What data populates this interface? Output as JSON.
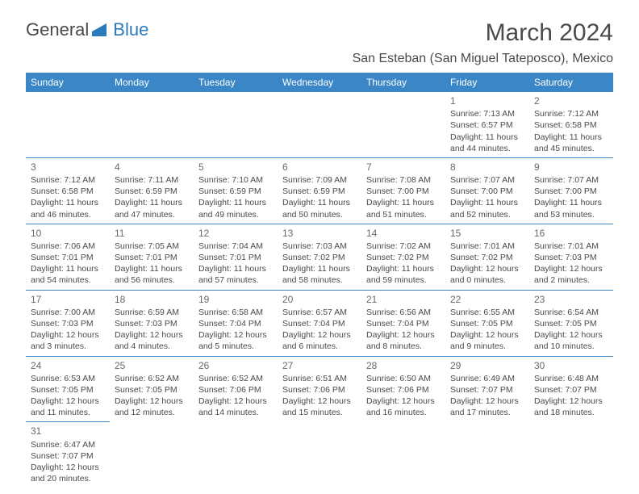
{
  "logo": {
    "text1": "General",
    "text2": "Blue"
  },
  "title": "March 2024",
  "location": "San Esteban (San Miguel Tateposco), Mexico",
  "colors": {
    "header_bg": "#3b86c6",
    "header_fg": "#ffffff",
    "border": "#3b86c6",
    "text": "#4a4a4a",
    "logo_blue": "#2b7bbd"
  },
  "weekdays": [
    "Sunday",
    "Monday",
    "Tuesday",
    "Wednesday",
    "Thursday",
    "Friday",
    "Saturday"
  ],
  "weeks": [
    [
      null,
      null,
      null,
      null,
      null,
      {
        "n": "1",
        "sr": "7:13 AM",
        "ss": "6:57 PM",
        "dl": "11 hours and 44 minutes."
      },
      {
        "n": "2",
        "sr": "7:12 AM",
        "ss": "6:58 PM",
        "dl": "11 hours and 45 minutes."
      }
    ],
    [
      {
        "n": "3",
        "sr": "7:12 AM",
        "ss": "6:58 PM",
        "dl": "11 hours and 46 minutes."
      },
      {
        "n": "4",
        "sr": "7:11 AM",
        "ss": "6:59 PM",
        "dl": "11 hours and 47 minutes."
      },
      {
        "n": "5",
        "sr": "7:10 AM",
        "ss": "6:59 PM",
        "dl": "11 hours and 49 minutes."
      },
      {
        "n": "6",
        "sr": "7:09 AM",
        "ss": "6:59 PM",
        "dl": "11 hours and 50 minutes."
      },
      {
        "n": "7",
        "sr": "7:08 AM",
        "ss": "7:00 PM",
        "dl": "11 hours and 51 minutes."
      },
      {
        "n": "8",
        "sr": "7:07 AM",
        "ss": "7:00 PM",
        "dl": "11 hours and 52 minutes."
      },
      {
        "n": "9",
        "sr": "7:07 AM",
        "ss": "7:00 PM",
        "dl": "11 hours and 53 minutes."
      }
    ],
    [
      {
        "n": "10",
        "sr": "7:06 AM",
        "ss": "7:01 PM",
        "dl": "11 hours and 54 minutes."
      },
      {
        "n": "11",
        "sr": "7:05 AM",
        "ss": "7:01 PM",
        "dl": "11 hours and 56 minutes."
      },
      {
        "n": "12",
        "sr": "7:04 AM",
        "ss": "7:01 PM",
        "dl": "11 hours and 57 minutes."
      },
      {
        "n": "13",
        "sr": "7:03 AM",
        "ss": "7:02 PM",
        "dl": "11 hours and 58 minutes."
      },
      {
        "n": "14",
        "sr": "7:02 AM",
        "ss": "7:02 PM",
        "dl": "11 hours and 59 minutes."
      },
      {
        "n": "15",
        "sr": "7:01 AM",
        "ss": "7:02 PM",
        "dl": "12 hours and 0 minutes."
      },
      {
        "n": "16",
        "sr": "7:01 AM",
        "ss": "7:03 PM",
        "dl": "12 hours and 2 minutes."
      }
    ],
    [
      {
        "n": "17",
        "sr": "7:00 AM",
        "ss": "7:03 PM",
        "dl": "12 hours and 3 minutes."
      },
      {
        "n": "18",
        "sr": "6:59 AM",
        "ss": "7:03 PM",
        "dl": "12 hours and 4 minutes."
      },
      {
        "n": "19",
        "sr": "6:58 AM",
        "ss": "7:04 PM",
        "dl": "12 hours and 5 minutes."
      },
      {
        "n": "20",
        "sr": "6:57 AM",
        "ss": "7:04 PM",
        "dl": "12 hours and 6 minutes."
      },
      {
        "n": "21",
        "sr": "6:56 AM",
        "ss": "7:04 PM",
        "dl": "12 hours and 8 minutes."
      },
      {
        "n": "22",
        "sr": "6:55 AM",
        "ss": "7:05 PM",
        "dl": "12 hours and 9 minutes."
      },
      {
        "n": "23",
        "sr": "6:54 AM",
        "ss": "7:05 PM",
        "dl": "12 hours and 10 minutes."
      }
    ],
    [
      {
        "n": "24",
        "sr": "6:53 AM",
        "ss": "7:05 PM",
        "dl": "12 hours and 11 minutes."
      },
      {
        "n": "25",
        "sr": "6:52 AM",
        "ss": "7:05 PM",
        "dl": "12 hours and 12 minutes."
      },
      {
        "n": "26",
        "sr": "6:52 AM",
        "ss": "7:06 PM",
        "dl": "12 hours and 14 minutes."
      },
      {
        "n": "27",
        "sr": "6:51 AM",
        "ss": "7:06 PM",
        "dl": "12 hours and 15 minutes."
      },
      {
        "n": "28",
        "sr": "6:50 AM",
        "ss": "7:06 PM",
        "dl": "12 hours and 16 minutes."
      },
      {
        "n": "29",
        "sr": "6:49 AM",
        "ss": "7:07 PM",
        "dl": "12 hours and 17 minutes."
      },
      {
        "n": "30",
        "sr": "6:48 AM",
        "ss": "7:07 PM",
        "dl": "12 hours and 18 minutes."
      }
    ],
    [
      {
        "n": "31",
        "sr": "6:47 AM",
        "ss": "7:07 PM",
        "dl": "12 hours and 20 minutes."
      },
      null,
      null,
      null,
      null,
      null,
      null
    ]
  ]
}
